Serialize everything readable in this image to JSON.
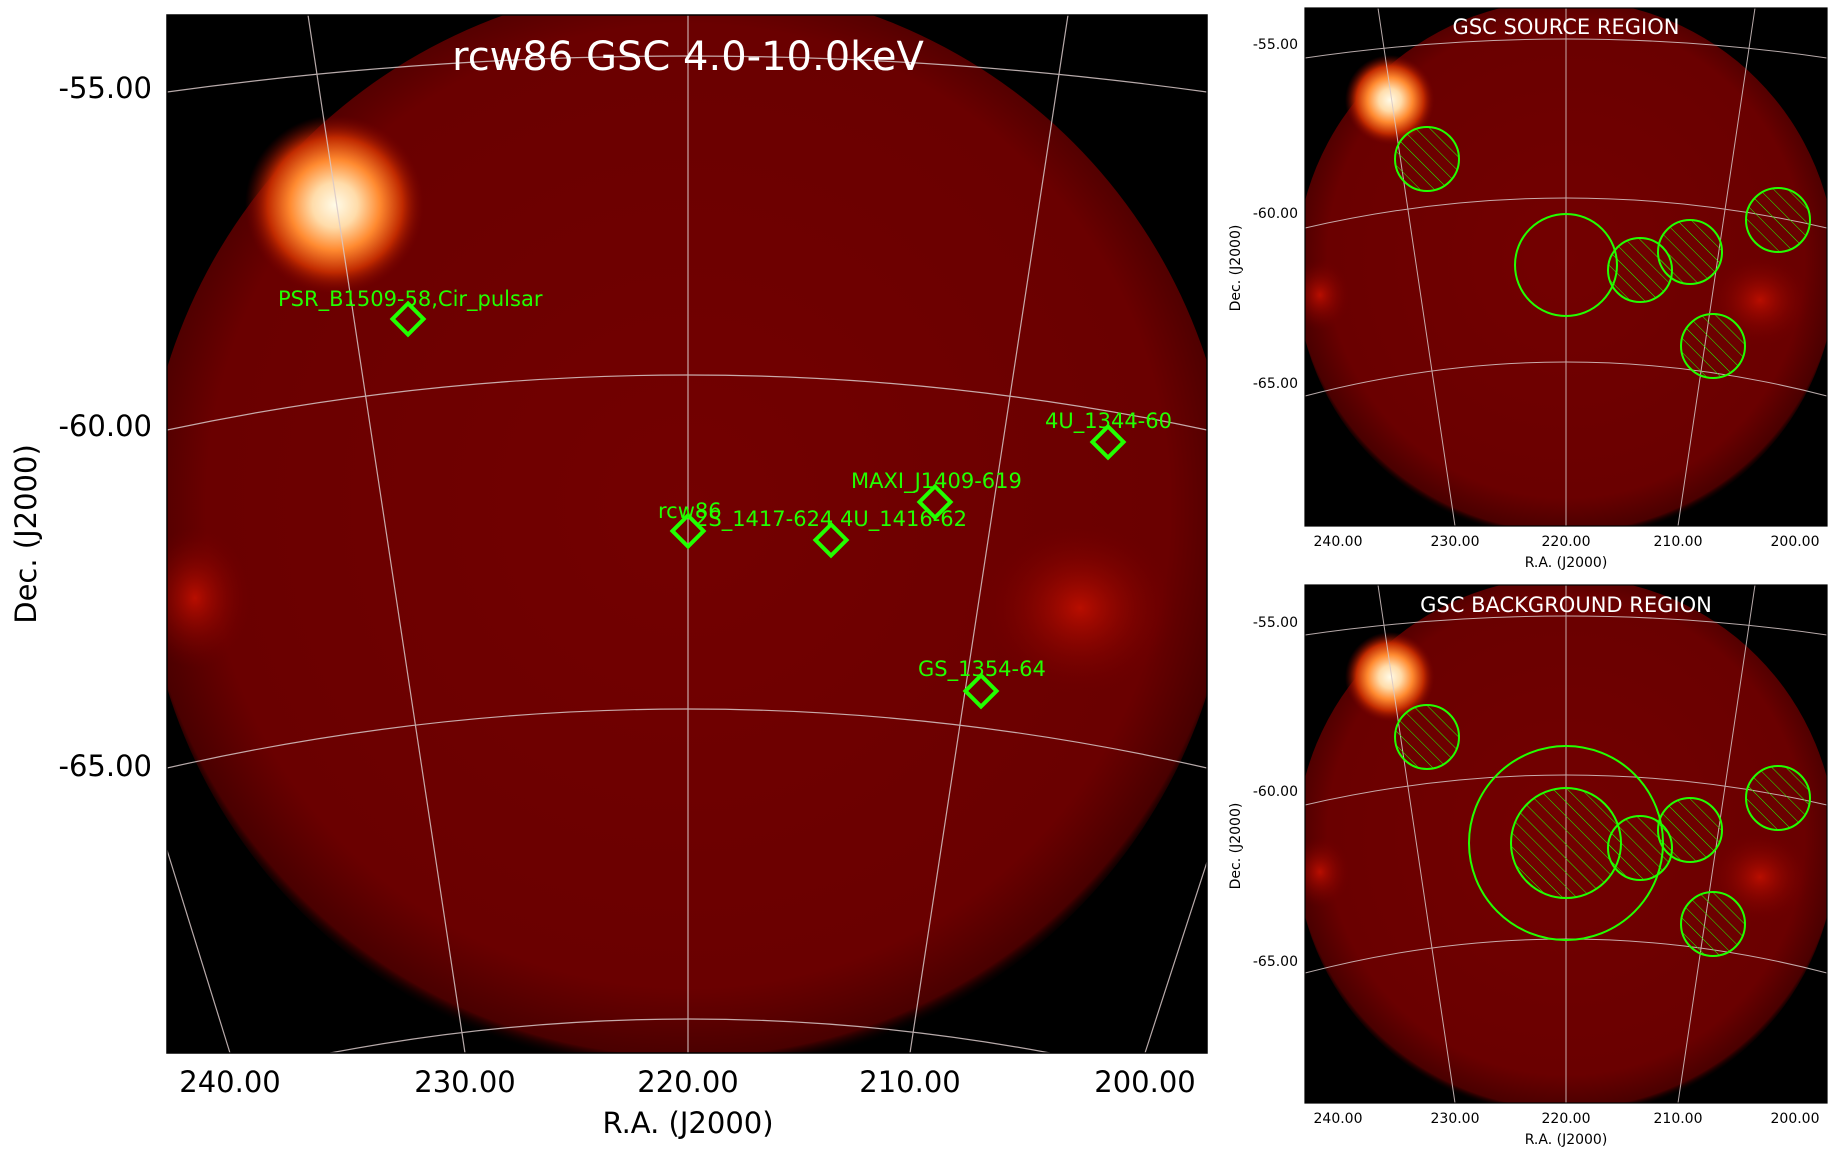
{
  "main_panel": {
    "title": "rcw86 GSC 4.0-10.0keV",
    "xlabel": "R.A. (J2000)",
    "ylabel": "Dec. (J2000)",
    "x_ticks": [
      "240.00",
      "230.00",
      "220.00",
      "210.00",
      "200.00"
    ],
    "y_ticks": [
      "-55.00",
      "-60.00",
      "-65.00"
    ],
    "sources": [
      {
        "name": "PSR_B1509-58,Cir_pulsar"
      },
      {
        "name": "4U_1344-60"
      },
      {
        "name": "MAXI_J1409-619"
      },
      {
        "name": "rcw86"
      },
      {
        "name": "2S_1417-624"
      },
      {
        "name": "4U_1416-62"
      },
      {
        "name": "GS_1354-64"
      }
    ]
  },
  "source_panel": {
    "title": "GSC SOURCE REGION",
    "xlabel": "R.A. (J2000)",
    "ylabel": "Dec. (J2000)",
    "x_ticks": [
      "240.00",
      "230.00",
      "220.00",
      "210.00",
      "200.00"
    ],
    "y_ticks": [
      "-55.00",
      "-60.00",
      "-65.00"
    ]
  },
  "background_panel": {
    "title": "GSC BACKGROUND REGION",
    "xlabel": "R.A. (J2000)",
    "ylabel": "Dec. (J2000)",
    "x_ticks": [
      "240.00",
      "230.00",
      "220.00",
      "210.00",
      "200.00"
    ],
    "y_ticks": [
      "-55.00",
      "-60.00",
      "-65.00"
    ]
  },
  "colors": {
    "disk": "#6e0000",
    "hotspot": "#fff6e0",
    "marker": "#22ff00",
    "grid": "#d8c8c8",
    "sky_background": "#000000"
  }
}
